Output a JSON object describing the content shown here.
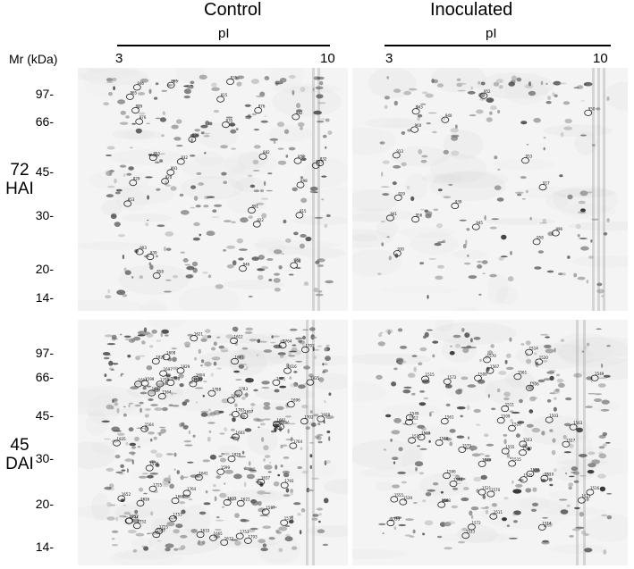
{
  "columns": {
    "left": {
      "title": "Control",
      "axis": "pI",
      "ph_min": "3",
      "ph_max": "10"
    },
    "right": {
      "title": "Inoculated",
      "axis": "pI",
      "ph_min": "3",
      "ph_max": "10"
    }
  },
  "mr_label": "Mr (kDa)",
  "rows": [
    {
      "line1": "72",
      "line2": "HAI",
      "ticks": [
        "97-",
        "66-",
        "45-",
        "30-",
        "20-",
        "14-"
      ]
    },
    {
      "line1": "45",
      "line2": "DAI",
      "ticks": [
        "97-",
        "66-",
        "45-",
        "30-",
        "20-",
        "14-"
      ]
    }
  ],
  "gel_colors": {
    "background": "#f4f4f4",
    "spot": "#3a3a3a",
    "circle": "#222222"
  },
  "spot_labels": {
    "c72": [
      "891",
      "903",
      "876",
      "882",
      "858",
      "846",
      "865",
      "853",
      "839",
      "835",
      "832",
      "829",
      "898",
      "815",
      "820",
      "822"
    ],
    "i72": [
      "939",
      "943",
      "941",
      "945",
      "940",
      "952",
      "950",
      "956",
      "953",
      "958",
      "960",
      "996",
      "917",
      "919",
      "930",
      "913"
    ],
    "c45": [
      "1764",
      "1753",
      "1829",
      "1835",
      "1793",
      "1788",
      "1783",
      "1725",
      "1752",
      "1696",
      "1702",
      "1665",
      "1661",
      "1612",
      "1616",
      "1621",
      "1608",
      "1604",
      "1599",
      "1587",
      "1576",
      "1564",
      "1603",
      "1652",
      "1633",
      "1641",
      "1637",
      "1697"
    ],
    "i45": [
      "1572",
      "1540",
      "1575",
      "1570",
      "1555",
      "1549",
      "1561",
      "1563",
      "1520",
      "1533",
      "1514",
      "1515",
      "1521",
      "1512",
      "1503",
      "1510",
      "1511",
      "1509",
      "1506",
      "1516",
      "1519",
      "1530",
      "1539",
      "1567",
      "1500",
      "1527"
    ]
  }
}
